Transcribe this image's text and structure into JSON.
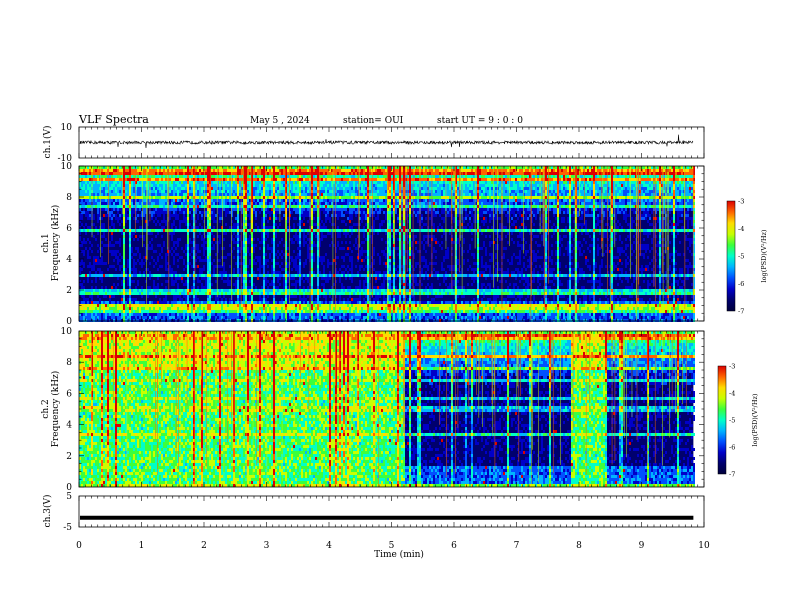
{
  "header": {
    "title": "VLF Spectra",
    "date": "May 5 , 2024",
    "station": "station= OUI",
    "start_ut": "start UT =  9 : 0 : 0"
  },
  "chart_data": [
    {
      "type": "line",
      "name": "ch1-waveform",
      "ylabel": "ch.1(V)",
      "ylim": [
        -10,
        10
      ],
      "yticks": [
        "10",
        "-10"
      ],
      "baseline": 0,
      "noise_band": 1
    },
    {
      "type": "heatmap",
      "name": "ch1-spectrogram",
      "ylabel": "ch.1 Frequency (kHz)",
      "ylim": [
        0,
        10
      ],
      "yticks": [
        "0",
        "2",
        "4",
        "6",
        "8",
        "10"
      ],
      "colorbar": {
        "label": "log(PSD)(V²/Hz)",
        "ticks": [
          "-3",
          "-4",
          "-5",
          "-6",
          "-7"
        ],
        "range": [
          -7,
          -3
        ]
      },
      "quiet_intervals_min": []
    },
    {
      "type": "heatmap",
      "name": "ch2-spectrogram",
      "ylabel": "ch.2 Frequency (kHz)",
      "ylim": [
        0,
        10
      ],
      "yticks": [
        "0",
        "2",
        "4",
        "6",
        "8",
        "10"
      ],
      "colorbar": {
        "label": "log(PSD)(V²/Hz)",
        "ticks": [
          "-3",
          "-4",
          "-5",
          "-6",
          "-7"
        ],
        "range": [
          -7,
          -3
        ]
      },
      "elevated_intervals_min": [
        [
          0,
          5.2
        ],
        [
          7.85,
          8.4
        ]
      ]
    },
    {
      "type": "line",
      "name": "ch3-waveform",
      "ylabel": "ch.3(V)",
      "ylim": [
        -5,
        5
      ],
      "yticks": [
        "5",
        "-5"
      ],
      "baseline": -2
    }
  ],
  "xaxis": {
    "label": "Time (min)",
    "xlim": [
      0,
      10
    ],
    "ticks": [
      "0",
      "1",
      "2",
      "3",
      "4",
      "5",
      "6",
      "7",
      "8",
      "9",
      "10"
    ],
    "data_end_min": 9.83
  },
  "colors": {
    "background": "#000066",
    "colormap": [
      "#00003c",
      "#00006e",
      "#0000c8",
      "#0050ff",
      "#00b4ff",
      "#00ffc8",
      "#3cff3c",
      "#c8ff00",
      "#ffdc00",
      "#ff6400",
      "#dc0000"
    ]
  }
}
